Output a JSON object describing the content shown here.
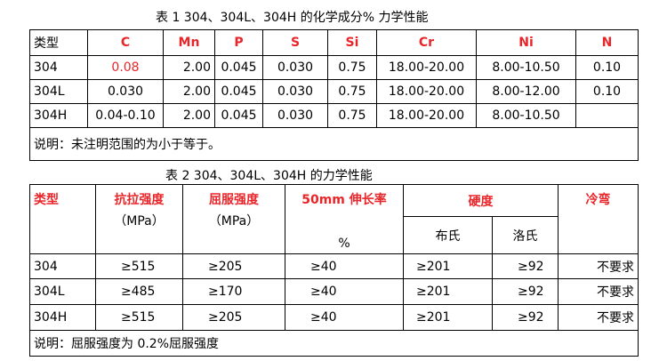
{
  "table1": {
    "title": "表 1 304、304L、304H 的化学成分% 力学性能",
    "header": [
      "类型",
      "C",
      "Mn",
      "P",
      "S",
      "Si",
      "Cr",
      "Ni",
      "N"
    ],
    "rows": [
      [
        "304",
        "0.08",
        "2.00",
        "0.045",
        "0.030",
        "0.75",
        "18.00-20.00",
        "8.00-10.50",
        "0.10"
      ],
      [
        "304L",
        "0.030",
        "2.00",
        "0.045",
        "0.030",
        "0.75",
        "18.00-20.00",
        "8.00-12.00",
        "0.10"
      ],
      [
        "304H",
        "0.04-0.10",
        "2.00",
        "0.045",
        "0.030",
        "0.75",
        "18.00-20.00",
        "8.00-10.50"
      ]
    ],
    "note": "说明：未注明范围的为小于等于。"
  },
  "table2": {
    "title": "表 2 304、304L、304H 的力学性能",
    "columns": [
      {
        "label": "类型"
      },
      {
        "label": "抗拉强度",
        "unit": "（MPa）"
      },
      {
        "label": "屈服强度",
        "unit": "（MPa）"
      },
      {
        "label": "50mm 伸长率",
        "unit": "%"
      },
      {
        "label": "硬度",
        "sub": [
          "布氏",
          "洛氏"
        ]
      },
      {
        "label": "冷弯"
      }
    ],
    "rows": [
      [
        "304",
        "≥515",
        "≥205",
        "≥40",
        "≥201",
        "≥92",
        "不要求"
      ],
      [
        "304L",
        "≥485",
        "≥170",
        "≥40",
        "≥201",
        "≥92",
        "不要求"
      ],
      [
        "304H",
        "≥515",
        "≥205",
        "≥40",
        "≥201",
        "≥92",
        "不要求"
      ]
    ],
    "note": "说明：屈服强度为 0.2%屈服强度"
  }
}
